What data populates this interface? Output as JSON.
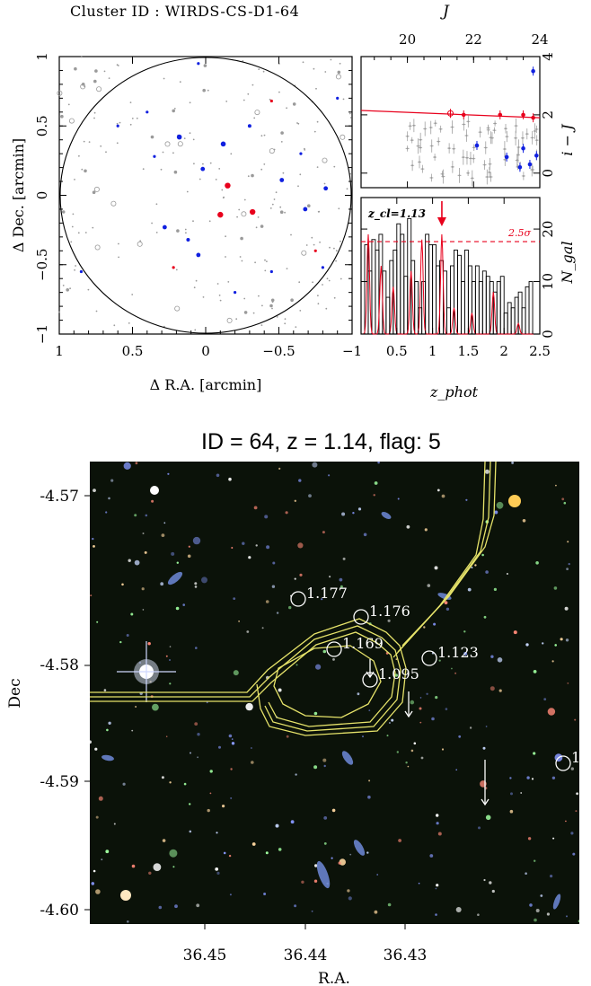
{
  "header": {
    "cluster_id": "Cluster ID : WIRDS-CS-D1-64",
    "j_label": "J"
  },
  "chart_data": [
    {
      "type": "scatter",
      "name": "sky-map",
      "xlabel": "Δ R.A. [arcmin]",
      "ylabel": "Δ Dec. [arcmin]",
      "xlim": [
        1,
        -1
      ],
      "ylim": [
        -1,
        1
      ],
      "xticks": [
        1,
        0.5,
        0,
        -0.5,
        -1
      ],
      "yticks": [
        -1,
        -0.5,
        0,
        0.5,
        1
      ],
      "xtick_labels": [
        "1",
        "0.5",
        "0",
        "−0.5",
        "−1"
      ],
      "ytick_labels": [
        "−1",
        "−0.5",
        "0",
        "0.5",
        "1"
      ],
      "circle_radius_arcmin": 1.0,
      "series": [
        {
          "color": "#e8001c",
          "points": [
            [
              -0.15,
              0.07,
              4
            ],
            [
              -0.32,
              -0.12,
              4
            ],
            [
              -0.1,
              -0.14,
              4
            ],
            [
              -0.45,
              0.68,
              2
            ],
            [
              0.22,
              -0.52,
              2
            ],
            [
              -0.75,
              -0.4,
              2
            ]
          ]
        },
        {
          "color": "#1020e0",
          "points": [
            [
              0.18,
              0.42,
              3.5
            ],
            [
              -0.12,
              0.37,
              3.5
            ],
            [
              0.02,
              0.19,
              3
            ],
            [
              -0.68,
              -0.1,
              3
            ],
            [
              0.28,
              -0.23,
              3
            ],
            [
              -0.52,
              0.11,
              3
            ],
            [
              -0.82,
              0.05,
              3
            ],
            [
              -0.3,
              0.5,
              2.5
            ],
            [
              0.05,
              -0.43,
              3
            ],
            [
              0.12,
              -0.32,
              2.5
            ],
            [
              -0.45,
              -0.55,
              2
            ],
            [
              -0.8,
              -0.52,
              2
            ],
            [
              0.35,
              0.28,
              2
            ],
            [
              0.85,
              -0.55,
              2
            ],
            [
              0.6,
              0.5,
              2
            ],
            [
              0.05,
              0.95,
              2
            ],
            [
              -0.9,
              0.7,
              2
            ],
            [
              -0.2,
              -0.7,
              2
            ],
            [
              0.4,
              0.6,
              2
            ],
            [
              -0.65,
              0.3,
              2
            ]
          ]
        }
      ]
    },
    {
      "type": "scatter",
      "name": "color-magnitude",
      "xlabel": "J",
      "ylabel": "i − J",
      "xlim": [
        18.6,
        24
      ],
      "ylim": [
        -0.5,
        4
      ],
      "xticks": [
        20,
        22,
        24
      ],
      "yticks": [
        0,
        2,
        4
      ],
      "red_sequence": {
        "x": [
          18.6,
          24
        ],
        "y": [
          2.15,
          1.9
        ]
      },
      "series": [
        {
          "color": "#e8001c",
          "points": [
            [
              21.7,
              2.0
            ],
            [
              22.8,
              2.0
            ],
            [
              23.5,
              2.0
            ],
            [
              23.8,
              1.9
            ]
          ]
        },
        {
          "color": "#e8001c",
          "marker": "open",
          "points": [
            [
              21.3,
              2.05
            ]
          ]
        },
        {
          "color": "#1020e0",
          "points": [
            [
              23.8,
              3.5
            ],
            [
              22.1,
              0.95
            ],
            [
              23.0,
              0.55
            ],
            [
              23.5,
              0.85
            ],
            [
              23.7,
              0.3
            ],
            [
              23.9,
              0.6
            ],
            [
              23.4,
              0.2
            ]
          ]
        }
      ]
    },
    {
      "type": "bar",
      "name": "redshift-histogram",
      "xlabel": "z_phot",
      "ylabel": "N_gal",
      "xlim": [
        0,
        2.5
      ],
      "ylim": [
        0,
        26
      ],
      "xticks": [
        0.5,
        1,
        1.5,
        2,
        2.5
      ],
      "xtick_labels": [
        "0.5",
        "1",
        "1.5",
        "2",
        "2.5"
      ],
      "yticks": [
        0,
        10,
        20
      ],
      "bin_width": 0.05,
      "bin_start": 0.05,
      "values": [
        17,
        12,
        18,
        16,
        19,
        12,
        7,
        14,
        16,
        21,
        19,
        11,
        22,
        14,
        10,
        5,
        10,
        19,
        17,
        17,
        13,
        14,
        12,
        5,
        13,
        16,
        15,
        10,
        16,
        13,
        10,
        13,
        10,
        12,
        11,
        10,
        8,
        10,
        11,
        4,
        6,
        5,
        7,
        8,
        5,
        9,
        10
      ],
      "threshold": {
        "value": 17.6,
        "label": "2.5σ"
      },
      "zcl_label": "z_cl=1.13",
      "arrow_z": 1.13
    },
    {
      "type": "scatter",
      "name": "image-cutout",
      "title": "ID = 64, z = 1.14, flag: 5",
      "xlabel": "R.A.",
      "ylabel": "Dec",
      "xticks": [
        "36.45",
        "36.44",
        "36.43"
      ],
      "yticks": [
        "-4.57",
        "-4.58",
        "-4.59",
        "-4.60"
      ],
      "specz_labels": [
        "1.177",
        "1.176",
        "1.169",
        "1.123",
        "1.095",
        "1."
      ]
    }
  ]
}
